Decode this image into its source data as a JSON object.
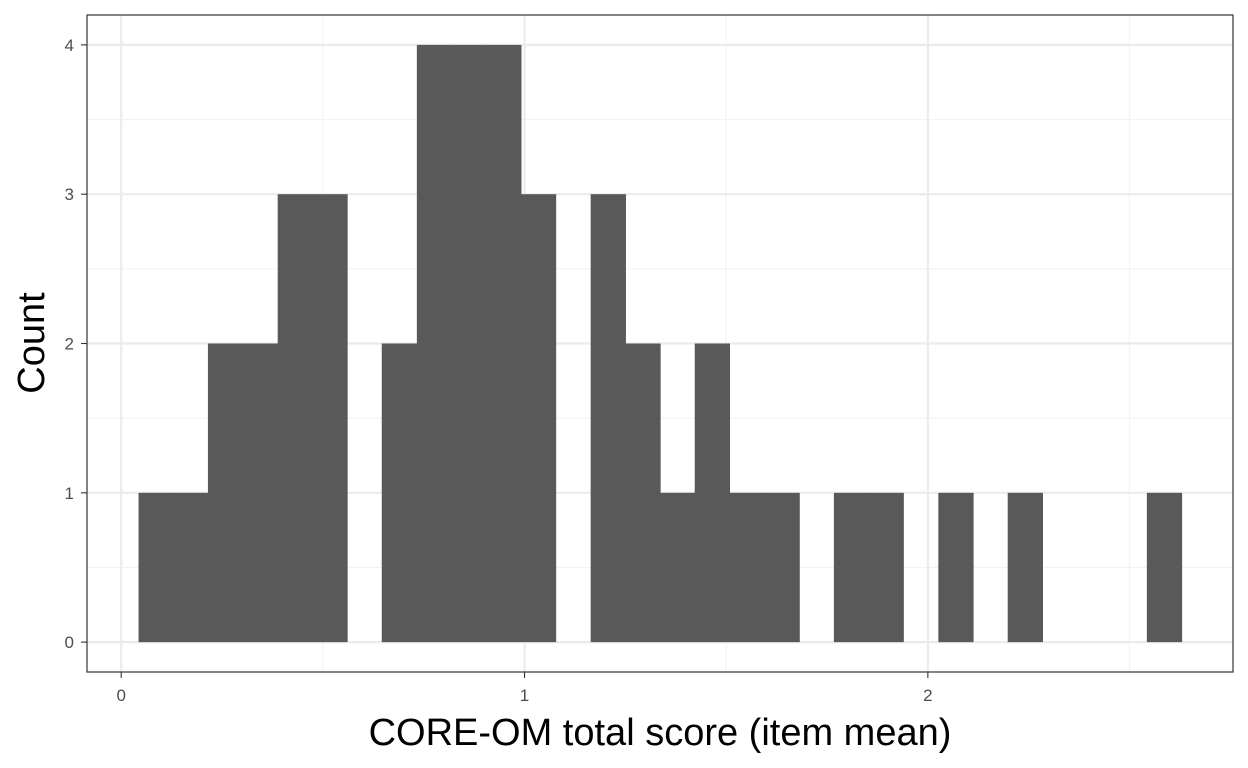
{
  "chart_data": {
    "type": "bar",
    "subtype": "histogram",
    "title": "",
    "xlabel": "CORE-OM total score (item mean)",
    "ylabel": "Count",
    "bin_width": 0.0862,
    "bins": [
      {
        "x0": 0.043,
        "x1": 0.129,
        "count": 1
      },
      {
        "x0": 0.129,
        "x1": 0.215,
        "count": 1
      },
      {
        "x0": 0.215,
        "x1": 0.302,
        "count": 2
      },
      {
        "x0": 0.302,
        "x1": 0.388,
        "count": 2
      },
      {
        "x0": 0.388,
        "x1": 0.474,
        "count": 3
      },
      {
        "x0": 0.474,
        "x1": 0.56,
        "count": 3
      },
      {
        "x0": 0.56,
        "x1": 0.646,
        "count": 0
      },
      {
        "x0": 0.646,
        "x1": 0.733,
        "count": 2
      },
      {
        "x0": 0.733,
        "x1": 0.819,
        "count": 4
      },
      {
        "x0": 0.819,
        "x1": 0.905,
        "count": 4
      },
      {
        "x0": 0.905,
        "x1": 0.991,
        "count": 4
      },
      {
        "x0": 0.991,
        "x1": 1.077,
        "count": 3
      },
      {
        "x0": 1.077,
        "x1": 1.164,
        "count": 0
      },
      {
        "x0": 1.164,
        "x1": 1.25,
        "count": 3
      },
      {
        "x0": 1.25,
        "x1": 1.336,
        "count": 2
      },
      {
        "x0": 1.336,
        "x1": 1.422,
        "count": 1
      },
      {
        "x0": 1.422,
        "x1": 1.508,
        "count": 2
      },
      {
        "x0": 1.508,
        "x1": 1.595,
        "count": 1
      },
      {
        "x0": 1.595,
        "x1": 1.681,
        "count": 1
      },
      {
        "x0": 1.681,
        "x1": 1.767,
        "count": 0
      },
      {
        "x0": 1.767,
        "x1": 1.853,
        "count": 1
      },
      {
        "x0": 1.853,
        "x1": 1.939,
        "count": 1
      },
      {
        "x0": 1.939,
        "x1": 2.026,
        "count": 0
      },
      {
        "x0": 2.026,
        "x1": 2.112,
        "count": 1
      },
      {
        "x0": 2.112,
        "x1": 2.198,
        "count": 0
      },
      {
        "x0": 2.198,
        "x1": 2.284,
        "count": 1
      },
      {
        "x0": 2.284,
        "x1": 2.37,
        "count": 0
      },
      {
        "x0": 2.37,
        "x1": 2.457,
        "count": 0
      },
      {
        "x0": 2.457,
        "x1": 2.543,
        "count": 0
      },
      {
        "x0": 2.543,
        "x1": 2.629,
        "count": 1
      }
    ],
    "xlim": [
      -0.0848,
      2.7566
    ],
    "ylim": [
      -0.2,
      4.2
    ],
    "x_ticks": [
      0,
      1,
      2
    ],
    "x_tick_labels": [
      "0",
      "1",
      "2"
    ],
    "y_ticks": [
      0,
      1,
      2,
      3,
      4
    ],
    "y_tick_labels": [
      "0",
      "1",
      "2",
      "3",
      "4"
    ],
    "grid": true,
    "legend": "none",
    "colors": {
      "bar_fill": "#595959",
      "panel_background": "#ffffff",
      "grid_major": "#ebebeb",
      "grid_minor": "#f2f2f2",
      "panel_border": "#333333",
      "tick_label": "#4d4d4d",
      "axis_title": "#000000"
    }
  }
}
